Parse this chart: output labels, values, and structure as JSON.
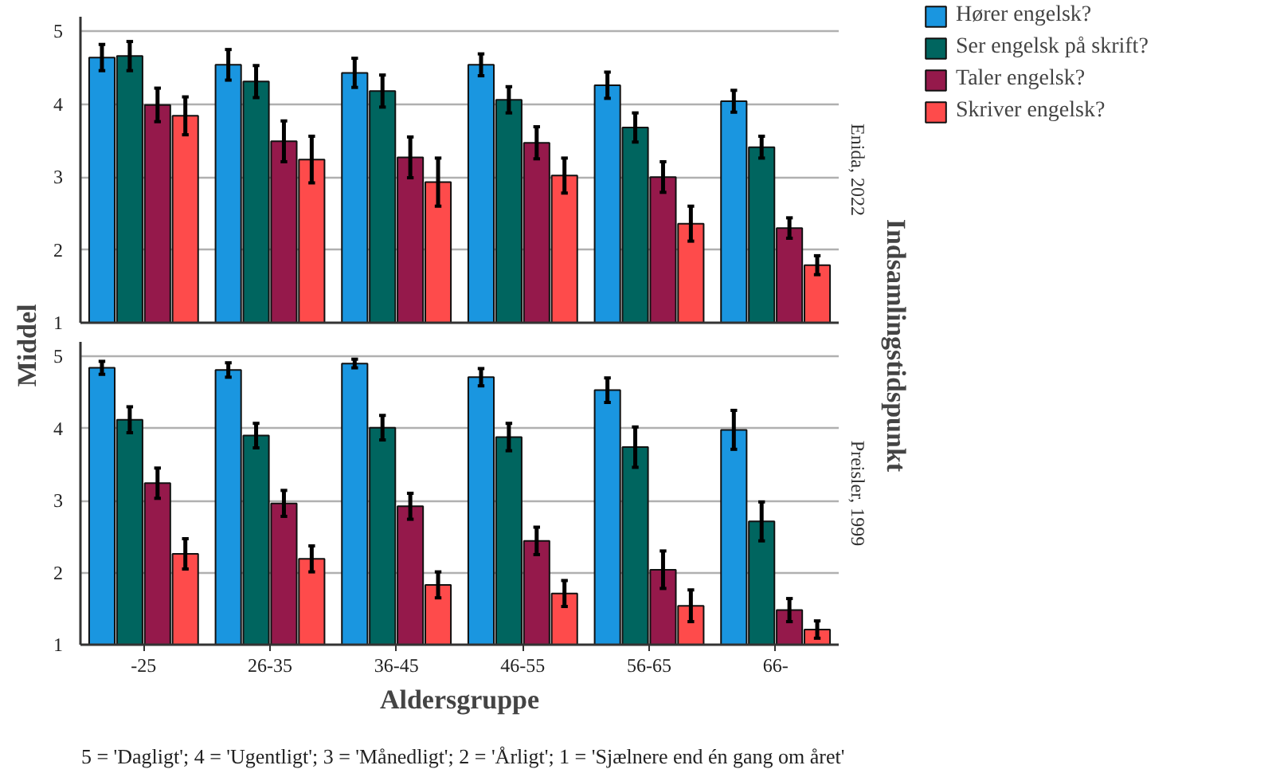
{
  "chart_data": [
    {
      "type": "bar",
      "title": "Enida, 2022",
      "ylabel": "Middel",
      "y2label": "Indsamlingstidspunkt",
      "categories": [
        null,
        null,
        null,
        null,
        null,
        null
      ],
      "ylim": [
        1,
        5.2
      ],
      "yticks": [
        1,
        2,
        3,
        4,
        5
      ],
      "grid": "y",
      "legend": "right",
      "tick_labels": "y",
      "series": [
        {
          "name": "Hører engelsk?",
          "color": "#1a96e0",
          "values": [
            4.64,
            4.54,
            4.43,
            4.54,
            4.26,
            4.04
          ],
          "errors": [
            0.18,
            0.21,
            0.2,
            0.15,
            0.18,
            0.15
          ]
        },
        {
          "name": "Ser engelsk på skrift?",
          "color": "#00655f",
          "values": [
            4.66,
            4.31,
            4.18,
            4.06,
            3.68,
            3.41
          ],
          "errors": [
            0.2,
            0.22,
            0.22,
            0.18,
            0.2,
            0.15
          ]
        },
        {
          "name": "Taler engelsk?",
          "color": "#95194b",
          "values": [
            3.99,
            3.49,
            3.27,
            3.47,
            3.0,
            2.3
          ],
          "errors": [
            0.23,
            0.28,
            0.28,
            0.22,
            0.21,
            0.14
          ]
        },
        {
          "name": "Skriver engelsk?",
          "color": "#fe4b4b",
          "values": [
            3.84,
            3.24,
            2.93,
            3.02,
            2.36,
            1.79
          ],
          "errors": [
            0.26,
            0.32,
            0.33,
            0.24,
            0.24,
            0.13
          ]
        }
      ]
    },
    {
      "type": "bar",
      "title": "Preisler, 1999",
      "xlabel": "Aldersgruppe",
      "annotations": [
        "5 = 'Dagligt'; 4 = 'Ugentligt'; 3 = 'Månedligt'; 2 = 'Årligt'; 1 = 'Sjælnere end én gang om året'"
      ],
      "categories": [
        "-25",
        "26-35",
        "36-45",
        "46-55",
        "56-65",
        "66-"
      ],
      "ylim": [
        1,
        5.2
      ],
      "yticks": [
        1,
        2,
        3,
        4,
        5
      ],
      "grid": "y",
      "series": [
        {
          "color": "#1a96e0",
          "values": [
            4.84,
            4.81,
            4.9,
            4.71,
            4.53,
            3.98
          ],
          "errors": [
            0.09,
            0.1,
            0.06,
            0.12,
            0.17,
            0.27
          ]
        },
        {
          "color": "#00655f",
          "values": [
            4.12,
            3.9,
            4.01,
            3.88,
            3.74,
            2.71
          ],
          "errors": [
            0.18,
            0.17,
            0.17,
            0.19,
            0.28,
            0.27
          ]
        },
        {
          "color": "#95194b",
          "values": [
            3.24,
            2.96,
            2.92,
            2.44,
            2.04,
            1.48
          ],
          "errors": [
            0.21,
            0.18,
            0.18,
            0.19,
            0.26,
            0.16
          ]
        },
        {
          "color": "#fe4b4b",
          "values": [
            2.26,
            2.19,
            1.83,
            1.71,
            1.54,
            1.21
          ],
          "errors": [
            0.21,
            0.18,
            0.18,
            0.18,
            0.22,
            0.12
          ]
        }
      ]
    }
  ]
}
